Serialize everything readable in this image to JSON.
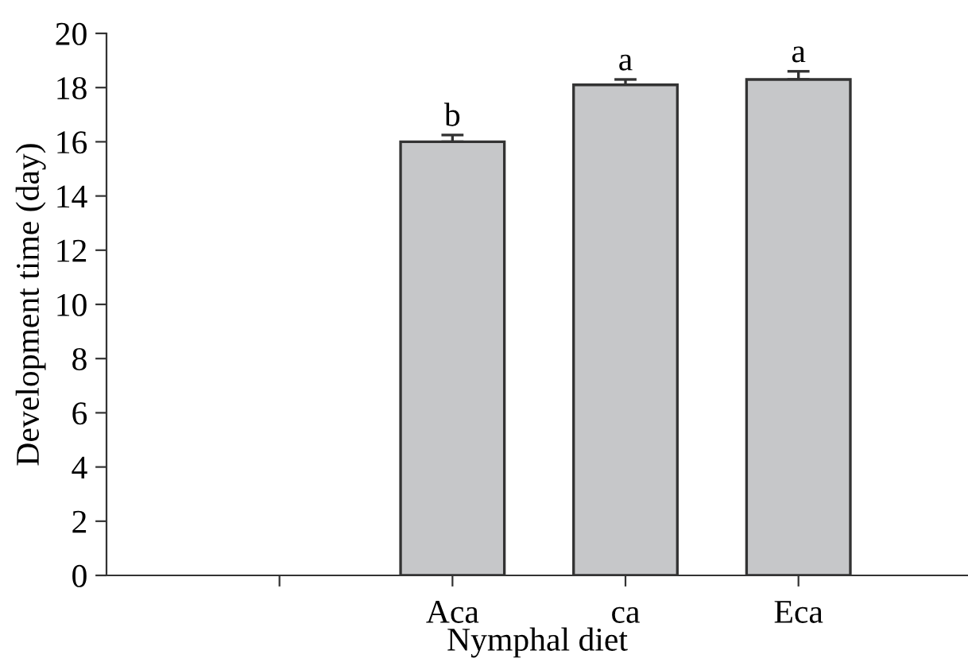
{
  "chart_data": {
    "type": "bar",
    "xlabel": "Nymphal diet",
    "ylabel": "Development time (day)",
    "categories": [
      null,
      "Aca",
      "ca",
      "Eca"
    ],
    "values": [
      null,
      16.0,
      18.1,
      18.3
    ],
    "errors": [
      null,
      [
        16.0,
        16.25
      ],
      [
        18.1,
        18.3
      ],
      [
        18.3,
        18.6
      ]
    ],
    "color": "#c6c7c9",
    "ylim": [
      0,
      20
    ],
    "yticks": [
      0,
      2,
      4,
      6,
      8,
      10,
      12,
      14,
      16,
      18,
      20
    ],
    "annotations": [
      {
        "text": "b",
        "x": "Aca",
        "y": 16.25
      },
      {
        "text": "a",
        "x": "ca",
        "y": 18.3
      },
      {
        "text": "a",
        "x": "Eca",
        "y": 18.6
      }
    ],
    "grid": false,
    "legend": false
  }
}
